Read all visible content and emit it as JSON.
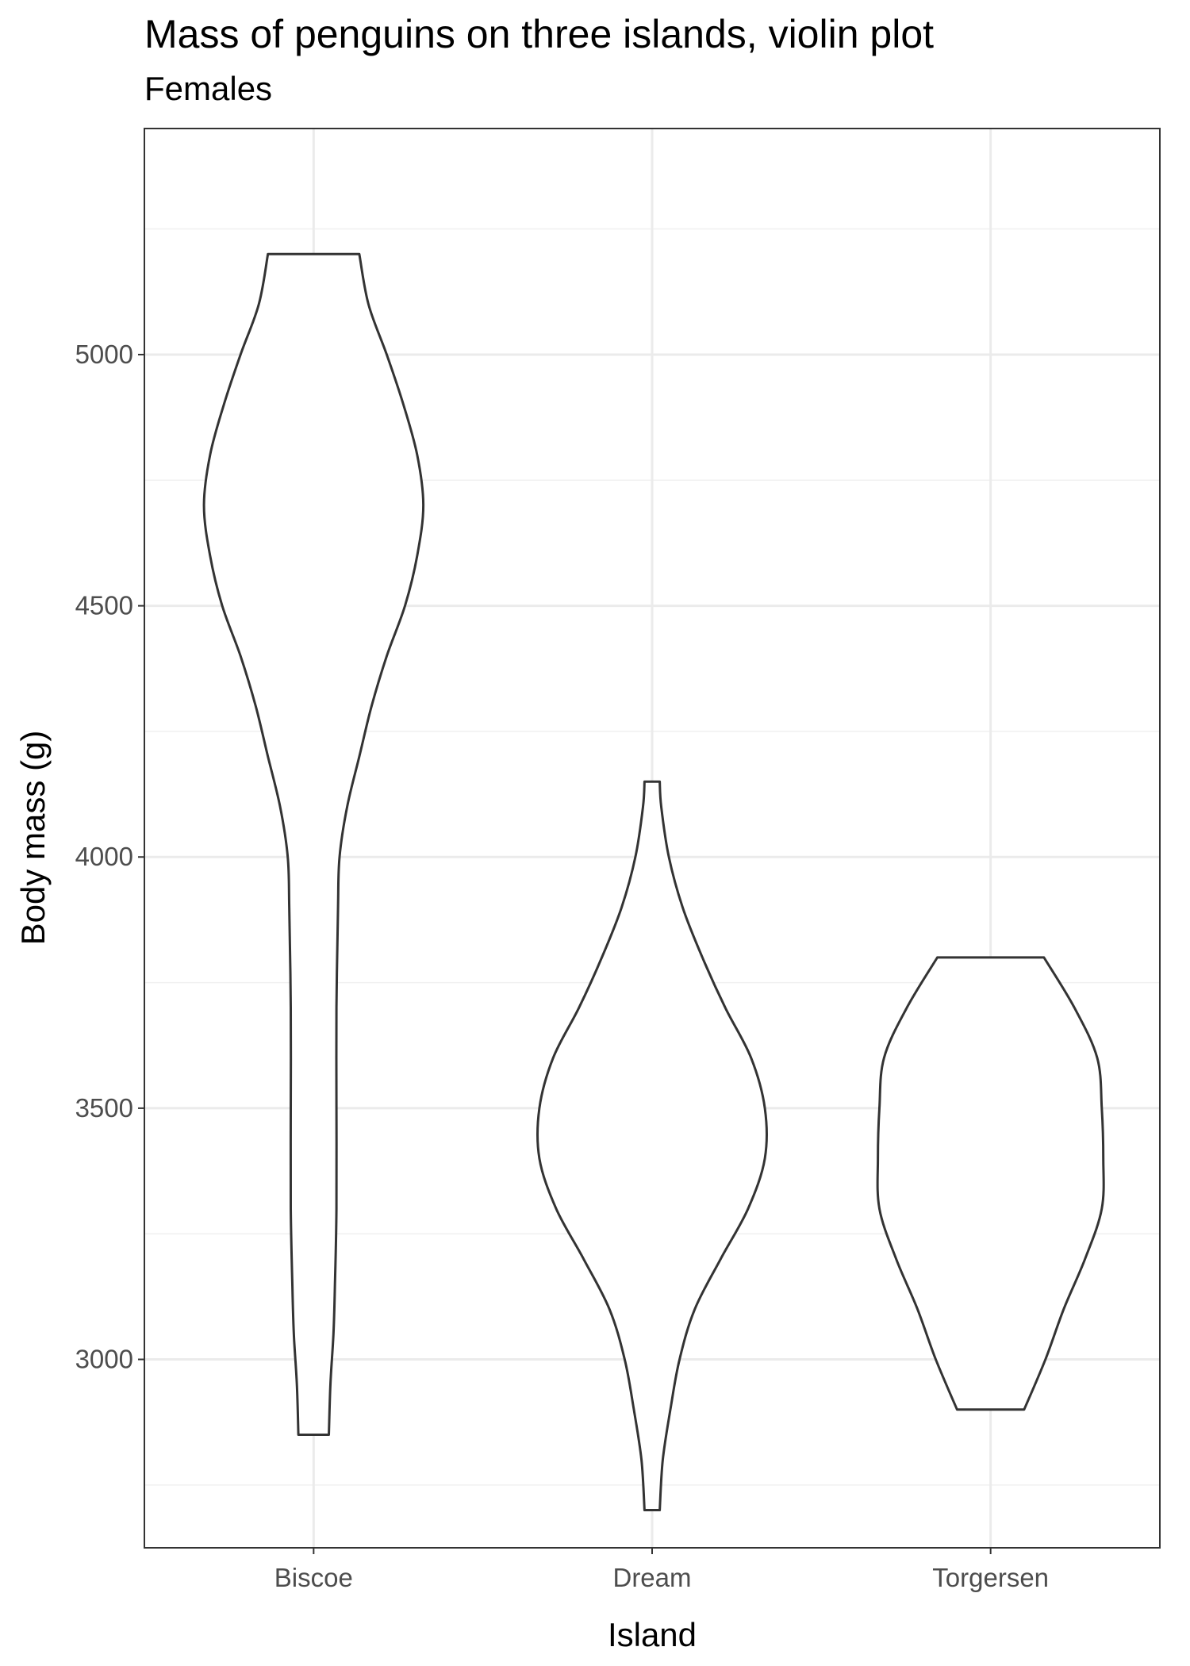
{
  "chart_data": {
    "type": "violin",
    "title": "Mass of penguins on three islands, violin plot",
    "subtitle": "Females",
    "xlabel": "Island",
    "ylabel": "Body mass (g)",
    "categories": [
      "Biscoe",
      "Dream",
      "Torgersen"
    ],
    "ylim": [
      2625,
      5450
    ],
    "yticks": [
      3000,
      3500,
      4000,
      4500,
      5000
    ],
    "grid": true,
    "theme": "bw",
    "outline_color": "#333333",
    "violins": [
      {
        "category": "Biscoe",
        "min": 2850,
        "max": 5200,
        "profile": [
          [
            2850,
            0.1
          ],
          [
            2950,
            0.11
          ],
          [
            3050,
            0.13
          ],
          [
            3150,
            0.14
          ],
          [
            3300,
            0.15
          ],
          [
            3500,
            0.15
          ],
          [
            3700,
            0.15
          ],
          [
            3900,
            0.16
          ],
          [
            4000,
            0.17
          ],
          [
            4100,
            0.22
          ],
          [
            4200,
            0.3
          ],
          [
            4300,
            0.38
          ],
          [
            4400,
            0.48
          ],
          [
            4500,
            0.6
          ],
          [
            4600,
            0.68
          ],
          [
            4700,
            0.72
          ],
          [
            4800,
            0.68
          ],
          [
            4900,
            0.59
          ],
          [
            5000,
            0.48
          ],
          [
            5100,
            0.36
          ],
          [
            5200,
            0.3
          ]
        ]
      },
      {
        "category": "Dream",
        "min": 2700,
        "max": 4150,
        "profile": [
          [
            2700,
            0.05
          ],
          [
            2800,
            0.07
          ],
          [
            2900,
            0.12
          ],
          [
            3000,
            0.18
          ],
          [
            3100,
            0.28
          ],
          [
            3200,
            0.45
          ],
          [
            3300,
            0.63
          ],
          [
            3400,
            0.74
          ],
          [
            3500,
            0.74
          ],
          [
            3600,
            0.65
          ],
          [
            3700,
            0.48
          ],
          [
            3800,
            0.33
          ],
          [
            3900,
            0.2
          ],
          [
            4000,
            0.11
          ],
          [
            4100,
            0.06
          ],
          [
            4150,
            0.05
          ]
        ]
      },
      {
        "category": "Torgersen",
        "min": 2900,
        "max": 3800,
        "profile": [
          [
            2900,
            0.22
          ],
          [
            3000,
            0.36
          ],
          [
            3100,
            0.48
          ],
          [
            3200,
            0.62
          ],
          [
            3300,
            0.73
          ],
          [
            3400,
            0.74
          ],
          [
            3500,
            0.73
          ],
          [
            3600,
            0.7
          ],
          [
            3700,
            0.55
          ],
          [
            3800,
            0.35
          ]
        ]
      }
    ]
  }
}
